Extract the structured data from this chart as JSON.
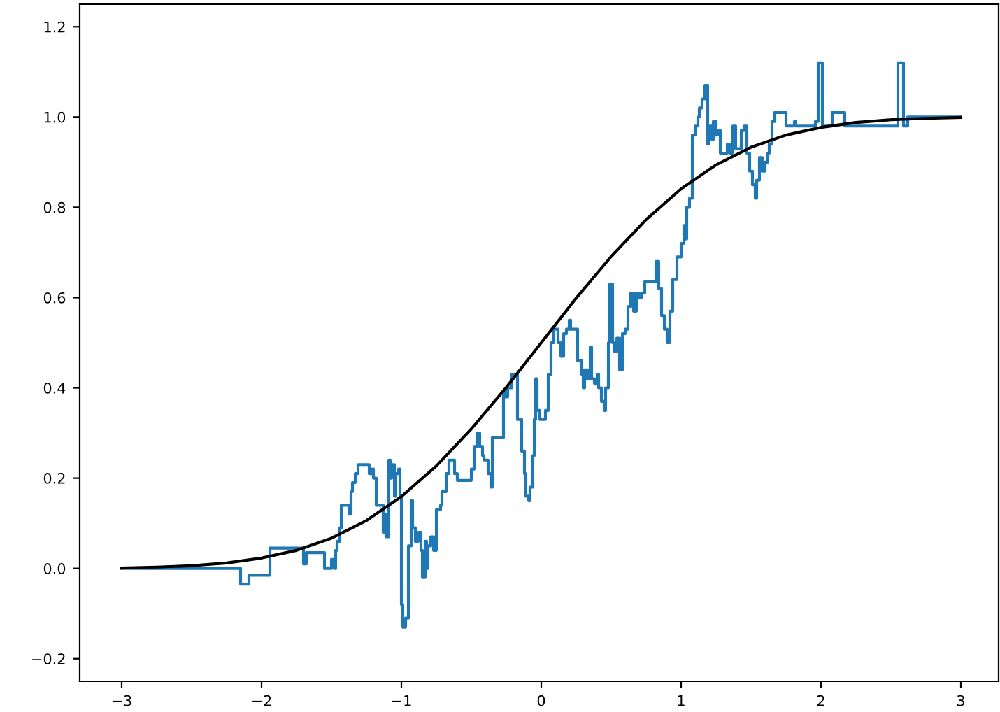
{
  "chart_data": {
    "type": "step",
    "xlim": [
      -3.3,
      3.27
    ],
    "ylim": [
      -0.25,
      1.25
    ],
    "xticks": [
      {
        "value": -3,
        "label": "−3"
      },
      {
        "value": -2,
        "label": "−2"
      },
      {
        "value": -1,
        "label": "−1"
      },
      0,
      1,
      2,
      3
    ],
    "yticks": [
      {
        "value": -0.2,
        "label": "−0.2"
      },
      {
        "value": 0,
        "label": "0.0"
      },
      {
        "value": 0.2,
        "label": "0.2"
      },
      {
        "value": 0.4,
        "label": "0.4"
      },
      {
        "value": 0.6,
        "label": "0.6"
      },
      {
        "value": 0.8,
        "label": "0.8"
      },
      {
        "value": 1,
        "label": "1.0"
      },
      {
        "value": 1.2,
        "label": "1.2"
      }
    ],
    "grid": false,
    "marker": "none",
    "line_style": "solid",
    "series": [
      {
        "color": "#1f77b4",
        "x": [
          -3.0,
          -2.15,
          -2.09,
          -1.94,
          -1.7,
          -1.68,
          -1.55,
          -1.5,
          -1.48,
          -1.47,
          -1.46,
          -1.44,
          -1.43,
          -1.37,
          -1.36,
          -1.35,
          -1.33,
          -1.31,
          -1.23,
          -1.21,
          -1.2,
          -1.18,
          -1.13,
          -1.12,
          -1.11,
          -1.09,
          -1.08,
          -1.07,
          -1.05,
          -1.04,
          -1.02,
          -1.01,
          -1.0,
          -0.99,
          -0.97,
          -0.95,
          -0.93,
          -0.92,
          -0.9,
          -0.88,
          -0.86,
          -0.85,
          -0.83,
          -0.82,
          -0.81,
          -0.79,
          -0.77,
          -0.75,
          -0.72,
          -0.71,
          -0.68,
          -0.66,
          -0.62,
          -0.6,
          -0.5,
          -0.48,
          -0.46,
          -0.44,
          -0.42,
          -0.41,
          -0.38,
          -0.36,
          -0.35,
          -0.27,
          -0.26,
          -0.24,
          -0.21,
          -0.19,
          -0.17,
          -0.14,
          -0.12,
          -0.11,
          -0.09,
          -0.08,
          -0.06,
          -0.05,
          -0.04,
          -0.03,
          -0.01,
          0.03,
          0.05,
          0.07,
          0.09,
          0.12,
          0.14,
          0.16,
          0.18,
          0.2,
          0.21,
          0.26,
          0.29,
          0.3,
          0.31,
          0.33,
          0.35,
          0.36,
          0.38,
          0.4,
          0.41,
          0.43,
          0.45,
          0.46,
          0.48,
          0.49,
          0.51,
          0.52,
          0.54,
          0.56,
          0.58,
          0.6,
          0.62,
          0.64,
          0.66,
          0.68,
          0.7,
          0.72,
          0.74,
          0.82,
          0.84,
          0.86,
          0.88,
          0.9,
          0.92,
          0.94,
          0.97,
          1.0,
          1.02,
          1.03,
          1.04,
          1.06,
          1.08,
          1.1,
          1.12,
          1.13,
          1.15,
          1.17,
          1.19,
          1.2,
          1.22,
          1.23,
          1.25,
          1.26,
          1.28,
          1.33,
          1.35,
          1.37,
          1.39,
          1.43,
          1.45,
          1.47,
          1.49,
          1.51,
          1.53,
          1.54,
          1.56,
          1.58,
          1.6,
          1.62,
          1.63,
          1.65,
          1.67,
          1.75,
          1.81,
          1.82,
          1.96,
          1.98,
          2.01,
          2.08,
          2.17,
          2.55,
          2.59,
          2.62,
          3.0
        ],
        "values": [
          0.0,
          -0.035,
          -0.015,
          0.045,
          0.01,
          0.035,
          0.0,
          0.02,
          0.0,
          0.04,
          0.06,
          0.09,
          0.14,
          0.12,
          0.17,
          0.19,
          0.21,
          0.23,
          0.21,
          0.22,
          0.2,
          0.14,
          0.08,
          0.12,
          0.07,
          0.24,
          0.2,
          0.23,
          0.16,
          0.21,
          0.22,
          0.16,
          -0.08,
          -0.13,
          -0.11,
          0.05,
          0.15,
          0.09,
          0.06,
          0.08,
          0.04,
          -0.02,
          0.06,
          0.0,
          0.05,
          0.07,
          0.04,
          0.13,
          0.14,
          0.17,
          0.21,
          0.24,
          0.21,
          0.195,
          0.22,
          0.27,
          0.3,
          0.27,
          0.25,
          0.24,
          0.21,
          0.18,
          0.29,
          0.39,
          0.38,
          0.4,
          0.43,
          0.43,
          0.33,
          0.26,
          0.21,
          0.16,
          0.15,
          0.18,
          0.25,
          0.33,
          0.42,
          0.35,
          0.33,
          0.35,
          0.43,
          0.5,
          0.53,
          0.5,
          0.47,
          0.52,
          0.53,
          0.55,
          0.53,
          0.46,
          0.43,
          0.4,
          0.44,
          0.42,
          0.49,
          0.42,
          0.41,
          0.43,
          0.4,
          0.37,
          0.35,
          0.4,
          0.5,
          0.63,
          0.5,
          0.48,
          0.51,
          0.44,
          0.52,
          0.53,
          0.58,
          0.61,
          0.57,
          0.61,
          0.6,
          0.61,
          0.635,
          0.68,
          0.62,
          0.56,
          0.53,
          0.5,
          0.57,
          0.64,
          0.69,
          0.72,
          0.76,
          0.73,
          0.8,
          0.82,
          0.96,
          0.98,
          1.0,
          1.02,
          1.04,
          1.07,
          0.94,
          0.98,
          0.95,
          0.99,
          0.96,
          0.97,
          0.92,
          0.94,
          0.92,
          0.98,
          0.93,
          0.97,
          0.98,
          0.92,
          0.88,
          0.85,
          0.82,
          0.86,
          0.91,
          0.88,
          0.9,
          0.92,
          0.94,
          0.99,
          1.01,
          0.98,
          0.99,
          0.98,
          0.99,
          1.12,
          0.98,
          1.01,
          0.98,
          1.12,
          0.98,
          1.0,
          1.0
        ]
      },
      {
        "type": "line",
        "color": "#000000",
        "x": [
          -3,
          -2.75,
          -2.5,
          -2.25,
          -2,
          -1.75,
          -1.5,
          -1.25,
          -1,
          -0.75,
          -0.5,
          -0.25,
          0,
          0.25,
          0.5,
          0.75,
          1,
          1.25,
          1.5,
          1.75,
          2,
          2.25,
          2.5,
          2.75,
          3
        ],
        "values": [
          0.001,
          0.003,
          0.006,
          0.012,
          0.023,
          0.04,
          0.067,
          0.106,
          0.159,
          0.227,
          0.309,
          0.401,
          0.5,
          0.599,
          0.691,
          0.773,
          0.841,
          0.894,
          0.933,
          0.96,
          0.977,
          0.988,
          0.994,
          0.997,
          0.999
        ]
      }
    ]
  }
}
